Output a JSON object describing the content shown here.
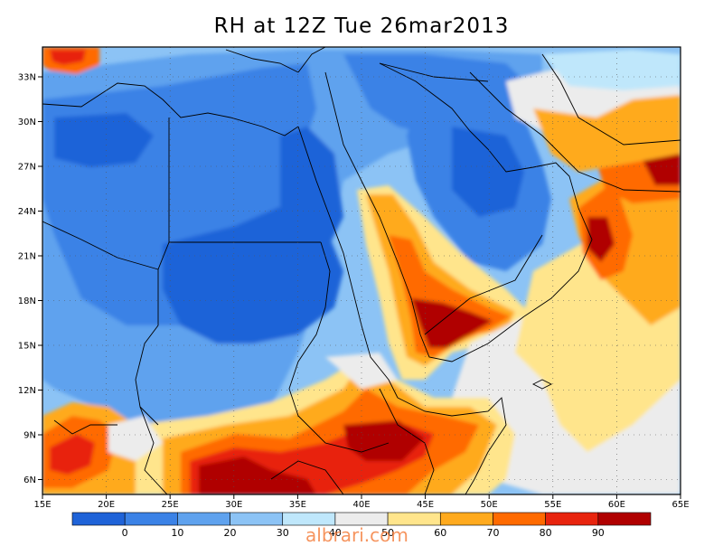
{
  "title": "RH at 12Z Tue 26mar2013",
  "watermark": "albrari.com",
  "lat_labels": [
    "33N",
    "30N",
    "27N",
    "24N",
    "21N",
    "18N",
    "15N",
    "12N",
    "9N",
    "6N"
  ],
  "lon_labels": [
    "15E",
    "20E",
    "25E",
    "30E",
    "35E",
    "40E",
    "45E",
    "50E",
    "55E",
    "60E",
    "65E"
  ],
  "colorbar": {
    "labels": [
      "0",
      "10",
      "20",
      "30",
      "40",
      "50",
      "60",
      "70",
      "80",
      "90"
    ],
    "colors": [
      "#1f63d8",
      "#3b82e6",
      "#5fa2ee",
      "#8cc3f5",
      "#bfe7fb",
      "#ececec",
      "#ffe58c",
      "#ffaa1e",
      "#ff6a00",
      "#e8240e",
      "#b00000"
    ]
  },
  "colors": {
    "rh_0_10": "#1f63d8",
    "rh_10_20": "#3b82e6",
    "rh_20_30": "#5fa2ee",
    "rh_30_40": "#8cc3f5",
    "rh_40_50": "#bfe7fb",
    "rh_50_60": "#ececec",
    "rh_60_70": "#ffe58c",
    "rh_70_80": "#ffaa1e",
    "rh_80_90": "#ff6a00",
    "rh_90_100": "#b00000",
    "rh_mid_high": "#e8240e"
  }
}
